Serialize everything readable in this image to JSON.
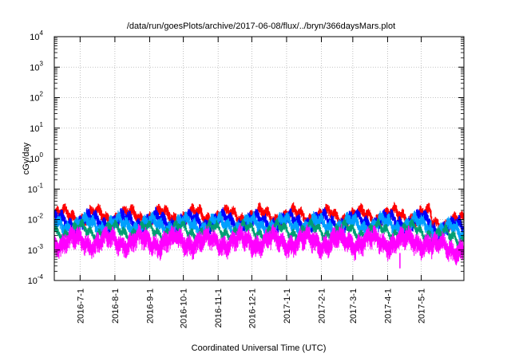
{
  "chart_data": {
    "type": "line",
    "title": "/data/run/goesPlots/archive/2017-06-08/flux/../bryn/366daysMars.plot",
    "xlabel": "Coordinated Universal Time (UTC)",
    "ylabel": "cGy/day",
    "yscale": "log",
    "ylim": [
      0.0001,
      10000
    ],
    "xlim": [
      "2016-06-08",
      "2017-06-08"
    ],
    "grid": true,
    "y_ticks": [
      {
        "base": "10",
        "exp": "4"
      },
      {
        "base": "10",
        "exp": "3"
      },
      {
        "base": "10",
        "exp": "2"
      },
      {
        "base": "10",
        "exp": "1"
      },
      {
        "base": "10",
        "exp": "0"
      },
      {
        "base": "10",
        "exp": "-1"
      },
      {
        "base": "10",
        "exp": "-2"
      },
      {
        "base": "10",
        "exp": "-3"
      },
      {
        "base": "10",
        "exp": "-4"
      }
    ],
    "x_ticks": [
      "2016-7-1",
      "2016-8-1",
      "2016-9-1",
      "2016-10-1",
      "2016-11-1",
      "2016-12-1",
      "2017-1-1",
      "2017-2-1",
      "2017-3-1",
      "2017-4-1",
      "2017-5-1"
    ],
    "series": [
      {
        "color": "#ff0000",
        "typical_min": 0.008,
        "typical_max": 0.02,
        "late_min": 0.005,
        "late_max": 0.012
      },
      {
        "color": "#0000ff",
        "typical_min": 0.005,
        "typical_max": 0.014,
        "late_min": 0.003,
        "late_max": 0.009
      },
      {
        "color": "#00a0ff",
        "typical_min": 0.004,
        "typical_max": 0.011,
        "late_min": 0.0025,
        "late_max": 0.007
      },
      {
        "color": "#009e73",
        "typical_min": 0.003,
        "typical_max": 0.006,
        "late_min": 0.002,
        "late_max": 0.004
      },
      {
        "color": "#ff00ff",
        "typical_min": 0.0008,
        "typical_max": 0.004,
        "late_min": 0.0005,
        "late_max": 0.0025
      }
    ],
    "annotations": [
      {
        "date": "2017-04-12",
        "series_color": "#ff00ff",
        "min_value": 0.00025
      }
    ],
    "late_period_start": "2017-05-10"
  }
}
